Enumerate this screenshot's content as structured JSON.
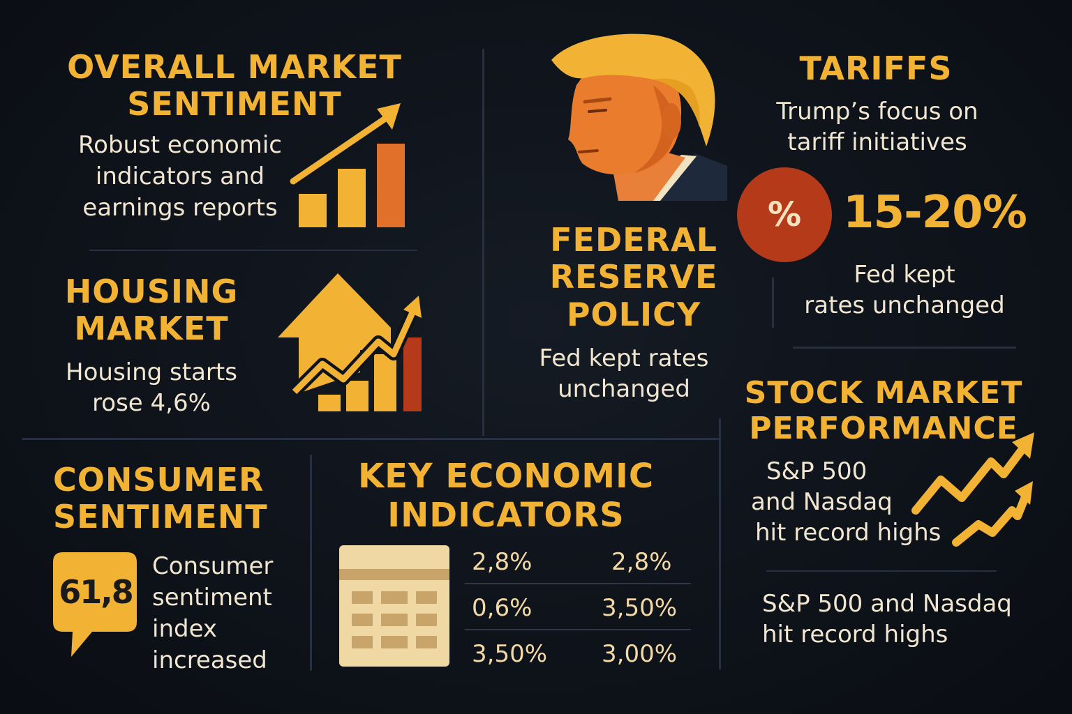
{
  "colors": {
    "background": "#0f141c",
    "heading": "#f2b233",
    "text": "#f0e6d2",
    "accent_orange": "#e0702a",
    "accent_red": "#b53a1a"
  },
  "overall_market": {
    "title_line1": "OVERALL MARKET",
    "title_line2": "SENTIMENT",
    "body_line1": "Robust economic",
    "body_line2": "indicators and",
    "body_line3": "earnings reports",
    "icon": "bar-chart-rising-arrow-icon"
  },
  "housing": {
    "title_line1": "HOUSING",
    "title_line2": "MARKET",
    "body_line1": "Housing starts",
    "body_line2": "rose 4,6%",
    "icon": "house-growth-chart-icon"
  },
  "federal_reserve": {
    "title_line1": "FEDERAL",
    "title_line2": "RESERVE",
    "title_line3": "POLICY",
    "body_line1": "Fed kept rates",
    "body_line2": "unchanged",
    "icon": "portrait-illustration"
  },
  "tariffs": {
    "title": "TARIFFS",
    "body_line1": "Trump’s focus on",
    "body_line2": "tariff initiatives",
    "percent_symbol": "%",
    "range": "15-20%",
    "note_line1": "Fed kept",
    "note_line2": "rates unchanged",
    "icon": "percent-circle-icon"
  },
  "consumer": {
    "title_line1": "CONSUMER",
    "title_line2": "SENTIMENT",
    "index_value": "61,8",
    "body_line1": "Consumer",
    "body_line2": "sentiment",
    "body_line3": "index",
    "body_line4": "increased",
    "icon": "speech-bubble-icon"
  },
  "key_indicators": {
    "title_line1": "KEY ECONOMIC",
    "title_line2": "INDICATORS",
    "icon": "calendar-table-icon",
    "rows": [
      {
        "left": "2,8%",
        "right": "2,8%"
      },
      {
        "left": "0,6%",
        "right": "3,50%"
      },
      {
        "left": "3,50%",
        "right": "3,00%"
      }
    ]
  },
  "stock_market": {
    "title_line1": "STOCK MARKET",
    "title_line2": "PERFORMANCE",
    "body_line1": "S&P 500",
    "body_line2": "and Nasdaq",
    "body_line3": "hit record highs",
    "note_line1": "S&P 500 and Nasdaq",
    "note_line2": "hit record highs",
    "icon": "twin-rising-arrows-icon"
  }
}
